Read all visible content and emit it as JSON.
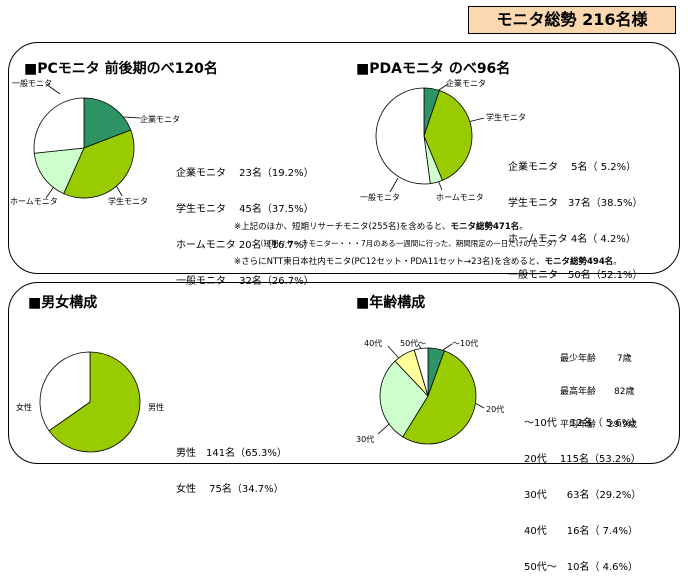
{
  "header": {
    "title": "モニタ総勢 216名様"
  },
  "pc": {
    "title": "■PCモニタ 前後期のべ120名",
    "labels": [
      "企業モニタ",
      "学生モニタ",
      "ホームモニタ",
      "一般モニタ"
    ],
    "stats": [
      "企業モニタ　 23名（19.2%）",
      "学生モニタ　 45名（37.5%）",
      "ホームモニタ 20名（16.7%）",
      "一般モニタ　 32名（26.7%）"
    ]
  },
  "pda": {
    "title": "■PDAモニタ のべ96名",
    "labels": [
      "企業モニタ",
      "学生モニタ",
      "ホームモニタ",
      "一般モニタ"
    ],
    "stats": [
      "企業モニタ　 5名（ 5.2%）",
      "学生モニタ　37名（38.5%）",
      "ホームモニタ 4名（ 4.2%）",
      "一般モニタ　50名（52.1%）"
    ]
  },
  "notes": {
    "line1": "※上記のほか、短期リサーチモニタ(255名)を含めると、",
    "line1_bold": "モニタ総勢471名",
    "line1_end": "。",
    "line2": "（短期リサーチモニター・・・7月のある一週間に行った、期間限定の一日だけのモニタ）",
    "line3": "※さらにNTT東日本社内モニタ(PC12セット・PDA11セット→23名)を含めると、",
    "line3_bold": "モニタ総勢494名",
    "line3_end": "。"
  },
  "gender": {
    "title": "■男女構成",
    "labels": [
      "男性",
      "女性"
    ],
    "stats": [
      "男性　141名（65.3%）",
      "女性　 75名（34.7%）"
    ]
  },
  "age": {
    "title": "■年齢構成",
    "labels": [
      "〜10代",
      "20代",
      "30代",
      "40代",
      "50代〜"
    ],
    "summary": [
      "最少年齢　　 7歳",
      "最高年齢　　82歳",
      "平均年齢　 29.9歳"
    ],
    "stats": [
      "〜10代　 12名（ 5.6%）",
      "20代　 115名（53.2%）",
      "30代　　63名（29.2%）",
      "40代　　16名（ 7.4%）",
      "50代〜　10名（ 4.6%）"
    ]
  },
  "chart_data": [
    {
      "type": "pie",
      "title": "■PCモニタ 前後期のべ120名",
      "categories": [
        "企業モニタ",
        "学生モニタ",
        "ホームモニタ",
        "一般モニタ"
      ],
      "values": [
        23,
        45,
        20,
        32
      ],
      "colors": [
        "#2e9466",
        "#99cc00",
        "#ccffcc",
        "#ffffff"
      ]
    },
    {
      "type": "pie",
      "title": "■PDAモニタ のべ96名",
      "categories": [
        "企業モニタ",
        "学生モニタ",
        "ホームモニタ",
        "一般モニタ"
      ],
      "values": [
        5,
        37,
        4,
        50
      ],
      "colors": [
        "#2e9466",
        "#99cc00",
        "#ccffcc",
        "#ffffff"
      ]
    },
    {
      "type": "pie",
      "title": "■男女構成",
      "categories": [
        "男性",
        "女性"
      ],
      "values": [
        141,
        75
      ],
      "colors": [
        "#99cc00",
        "#ffffff"
      ]
    },
    {
      "type": "pie",
      "title": "■年齢構成",
      "categories": [
        "〜10代",
        "20代",
        "30代",
        "40代",
        "50代〜"
      ],
      "values": [
        12,
        115,
        63,
        16,
        10
      ],
      "colors": [
        "#2e9466",
        "#99cc00",
        "#ccffcc",
        "#ffff99",
        "#ffffff"
      ]
    }
  ]
}
